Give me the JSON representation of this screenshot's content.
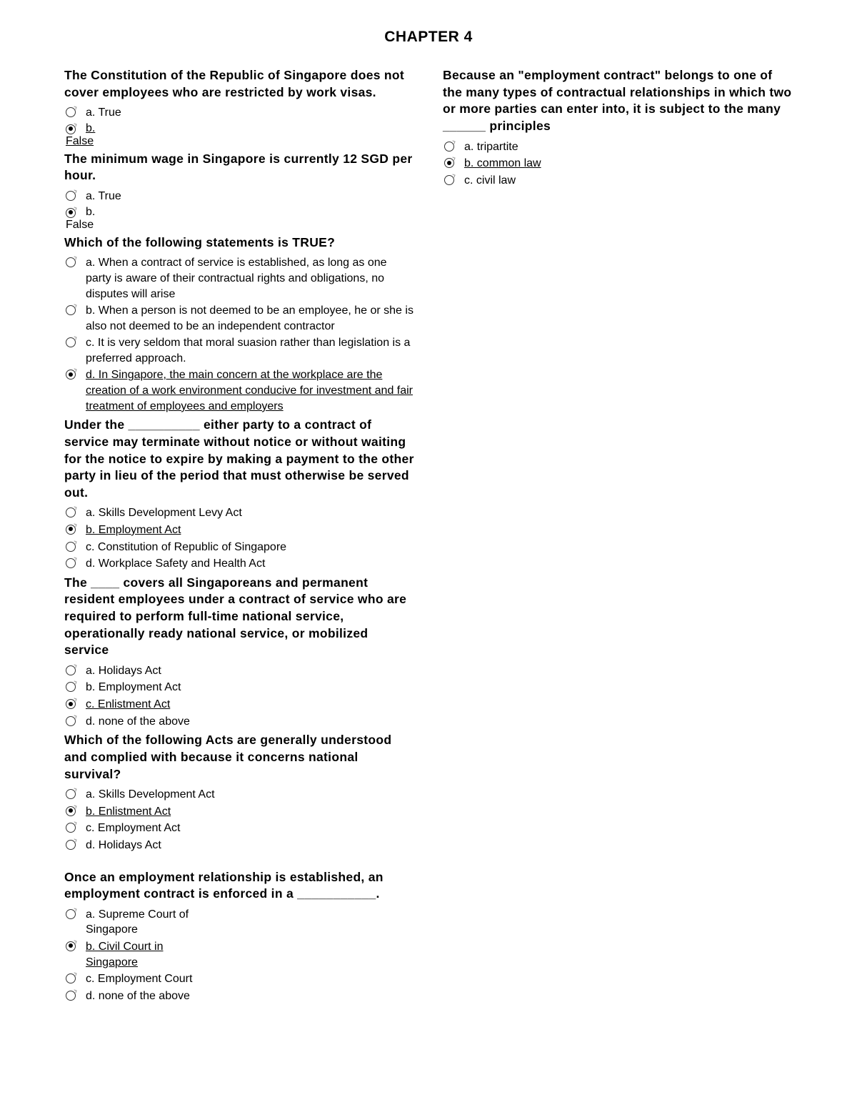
{
  "title": "CHAPTER 4",
  "questions": [
    {
      "text": "The Constitution of the Republic of Singapore does not cover employees who are restricted by work visas.",
      "options": [
        {
          "label": "a. True",
          "selected": false,
          "correct": false,
          "layout": "inline"
        },
        {
          "label": "b.",
          "below": "False",
          "selected": true,
          "correct": true,
          "layout": "wrap"
        }
      ]
    },
    {
      "text": "The minimum wage in Singapore is currently 12 SGD per hour.",
      "options": [
        {
          "label": "a. True",
          "selected": false,
          "correct": false,
          "layout": "inline"
        },
        {
          "label": "b.",
          "below": "False",
          "selected": true,
          "correct": false,
          "layout": "wrap"
        }
      ]
    },
    {
      "text": "Which of the following statements is TRUE?",
      "options": [
        {
          "label": "a. When a contract of service is established, as long as one party is aware of their contractual rights and obligations, no disputes will arise",
          "selected": false,
          "correct": false,
          "layout": "inline"
        },
        {
          "label": "b. When a person is not deemed to be an employee, he or she is also not deemed to be an independent contractor",
          "selected": false,
          "correct": false,
          "layout": "inline"
        },
        {
          "label": "c. It is very seldom that moral suasion rather than legislation is a preferred approach.",
          "selected": false,
          "correct": false,
          "layout": "inline"
        },
        {
          "label": "d. In Singapore, the main concern at the workplace are the creation of a work environment conducive for investment and fair treatment of employees and employers",
          "selected": true,
          "correct": true,
          "layout": "inline"
        }
      ]
    },
    {
      "text": "Under the __________ either party to a contract of service may terminate without notice or without waiting for the notice to expire by making a payment to the other party in lieu of the period that must otherwise be served out.",
      "options": [
        {
          "label": "a. Skills Development Levy Act",
          "selected": false,
          "correct": false,
          "layout": "inline"
        },
        {
          "label": "b. Employment Act",
          "selected": true,
          "correct": true,
          "layout": "inline"
        },
        {
          "label": "c. Constitution of Republic of Singapore",
          "selected": false,
          "correct": false,
          "layout": "inline"
        },
        {
          "label": "d. Workplace Safety and Health Act",
          "selected": false,
          "correct": false,
          "layout": "inline"
        }
      ]
    },
    {
      "text": "The ____ covers all Singaporeans and permanent resident employees under a contract of service who are required to perform full-time national service, operationally ready national service, or mobilized service",
      "split": true,
      "options": [
        {
          "label": "a. Holidays Act",
          "selected": false,
          "correct": false,
          "layout": "inline"
        },
        {
          "label": "b. Employment Act",
          "selected": false,
          "correct": false,
          "layout": "inline"
        },
        {
          "label": "c. Enlistment Act",
          "selected": true,
          "correct": true,
          "layout": "inline"
        },
        {
          "label": "d. none of the above",
          "selected": false,
          "correct": false,
          "layout": "inline"
        }
      ]
    },
    {
      "text": "Which of the following Acts are generally understood and complied with because it concerns national survival?",
      "options": [
        {
          "label": "a. Skills Development Act",
          "selected": false,
          "correct": false,
          "layout": "inline"
        },
        {
          "label": "b. Enlistment Act",
          "selected": true,
          "correct": true,
          "layout": "inline"
        },
        {
          "label": "c. Employment Act",
          "selected": false,
          "correct": false,
          "layout": "inline"
        },
        {
          "label": "d. Holidays Act",
          "selected": false,
          "correct": false,
          "layout": "inline"
        }
      ]
    },
    {
      "text": "Once an employment relationship is established, an employment contract is enforced in a ___________.",
      "pre_gap": true,
      "options": [
        {
          "label": "a. Supreme Court of Singapore",
          "selected": false,
          "correct": false,
          "layout": "inline"
        },
        {
          "label": "b. Civil Court in Singapore",
          "selected": true,
          "correct": true,
          "layout": "inline"
        },
        {
          "label": "c. Employment Court",
          "selected": false,
          "correct": false,
          "layout": "inline"
        },
        {
          "label": "d. none of the above",
          "selected": false,
          "correct": false,
          "layout": "inline"
        }
      ]
    },
    {
      "text": "Because an \"employment contract\" belongs to one of the many types of contractual relationships in which two or more parties can enter into, it is subject to the many ______ principles",
      "options": [
        {
          "label": "a. tripartite",
          "selected": false,
          "correct": false,
          "layout": "inline"
        },
        {
          "label": "b. common law",
          "selected": true,
          "correct": true,
          "layout": "inline"
        },
        {
          "label": "c. civil law",
          "selected": false,
          "correct": false,
          "layout": "inline"
        }
      ]
    }
  ]
}
